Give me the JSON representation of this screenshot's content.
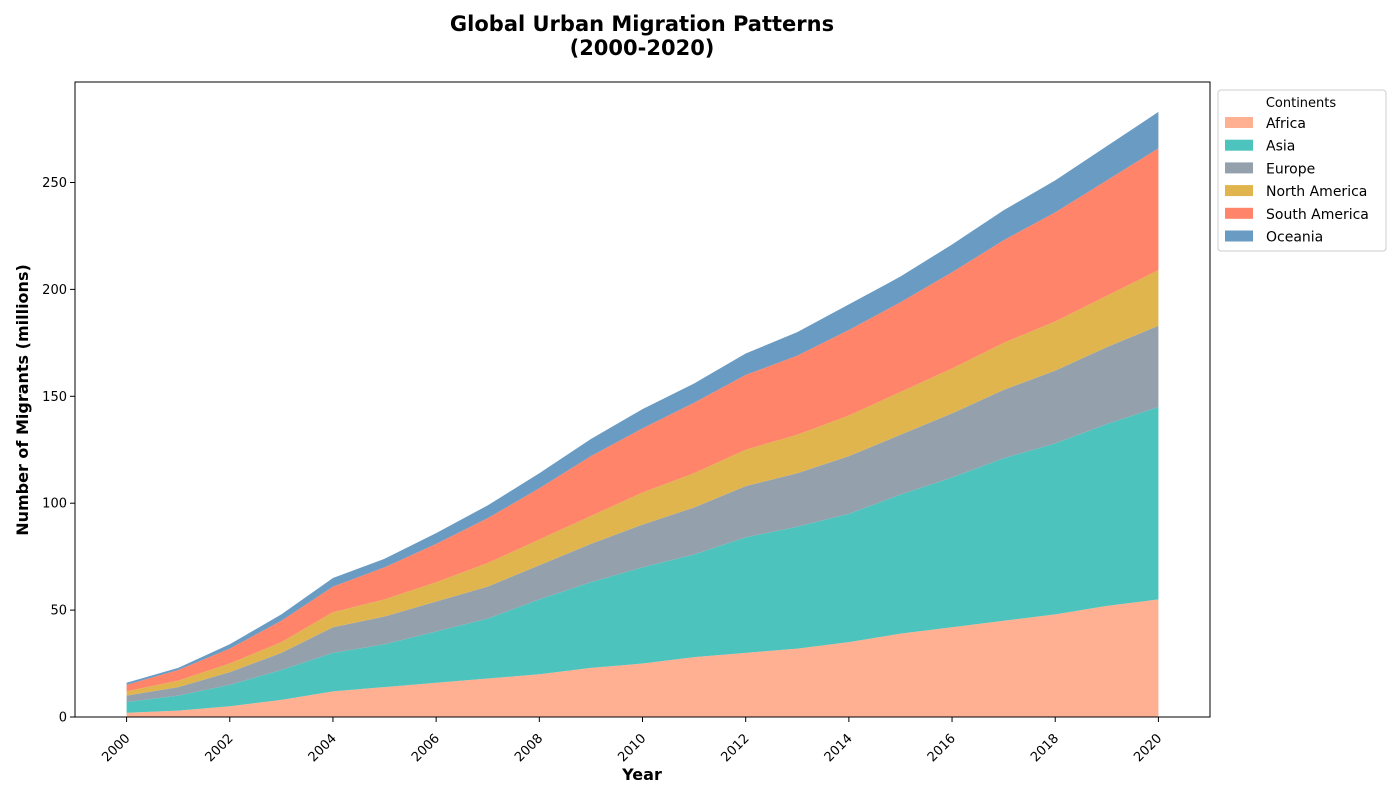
{
  "chart_data": {
    "type": "area",
    "stacked": true,
    "title_line1": "Global Urban Migration Patterns",
    "title_line2": "(2000-2020)",
    "xlabel": "Year",
    "ylabel": "Number of Migrants (millions)",
    "x": [
      2000,
      2001,
      2002,
      2003,
      2004,
      2005,
      2006,
      2007,
      2008,
      2009,
      2010,
      2011,
      2012,
      2013,
      2014,
      2015,
      2016,
      2017,
      2018,
      2019,
      2020
    ],
    "xlim": [
      1999,
      2021
    ],
    "ylim": [
      0,
      297
    ],
    "x_ticks": [
      "2000",
      "2002",
      "2004",
      "2006",
      "2008",
      "2010",
      "2012",
      "2014",
      "2016",
      "2018",
      "2020"
    ],
    "y_ticks": [
      "0",
      "50",
      "100",
      "150",
      "200",
      "250"
    ],
    "grid": false,
    "legend": {
      "title": "Continents",
      "placement": "outside top-right"
    },
    "series": [
      {
        "name": "Africa",
        "color": "#FFB093",
        "values": [
          2,
          3,
          5,
          8,
          12,
          14,
          16,
          18,
          20,
          23,
          25,
          28,
          30,
          32,
          35,
          39,
          42,
          45,
          48,
          52,
          55
        ]
      },
      {
        "name": "Asia",
        "color": "#4CC3BC",
        "values": [
          5,
          7,
          10,
          14,
          18,
          20,
          24,
          28,
          35,
          40,
          45,
          48,
          54,
          57,
          60,
          65,
          70,
          76,
          80,
          85,
          90
        ]
      },
      {
        "name": "Europe",
        "color": "#94A1AD",
        "values": [
          3,
          4,
          6,
          8,
          12,
          13,
          14,
          15,
          16,
          18,
          20,
          22,
          24,
          25,
          27,
          28,
          30,
          32,
          34,
          36,
          38
        ]
      },
      {
        "name": "North America",
        "color": "#E1B54D",
        "values": [
          2,
          3,
          4,
          5,
          7,
          8,
          9,
          11,
          12,
          13,
          15,
          16,
          17,
          18,
          19,
          20,
          21,
          22,
          23,
          24,
          26
        ]
      },
      {
        "name": "South America",
        "color": "#FF8469",
        "values": [
          3,
          5,
          7,
          10,
          12,
          15,
          18,
          21,
          24,
          28,
          30,
          33,
          35,
          37,
          40,
          42,
          45,
          48,
          51,
          54,
          57
        ]
      },
      {
        "name": "Oceania",
        "color": "#6A9BC3",
        "values": [
          1,
          1,
          2,
          3,
          4,
          4,
          5,
          6,
          7,
          8,
          9,
          9,
          10,
          11,
          12,
          12,
          13,
          14,
          15,
          16,
          17
        ]
      }
    ]
  }
}
